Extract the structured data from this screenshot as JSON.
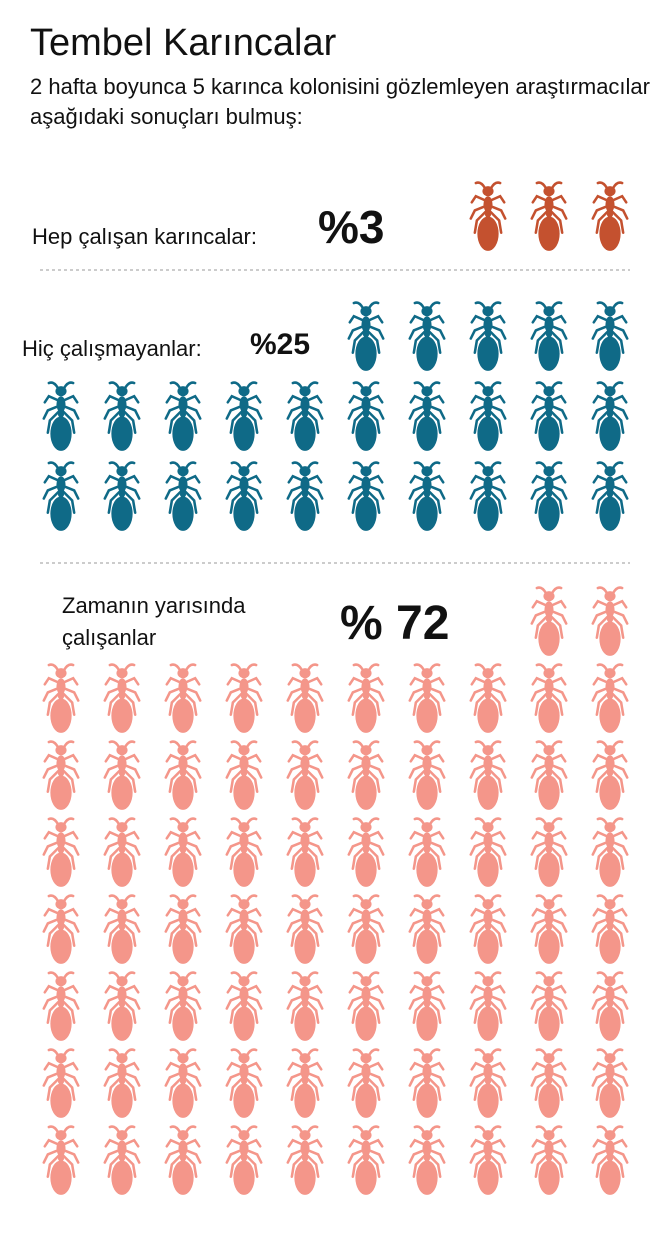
{
  "chart_data": {
    "type": "pictograph",
    "title": "Tembel Karıncalar",
    "subtitle": "2 hafta boyunca 5 karınca kolonisini gözlemleyen araştırmacılar aşağıdaki sonuçları bulmuş:",
    "categories": [
      "Hep çalışan karıncalar:",
      "Hiç çalışmayanlar:",
      "Zamanın yarısında çalışanlar"
    ],
    "values": [
      3,
      25,
      72
    ],
    "value_labels": [
      "%3",
      "%25",
      "% 72"
    ],
    "colors": [
      "#c4512f",
      "#0f6a87",
      "#f4968a"
    ]
  }
}
